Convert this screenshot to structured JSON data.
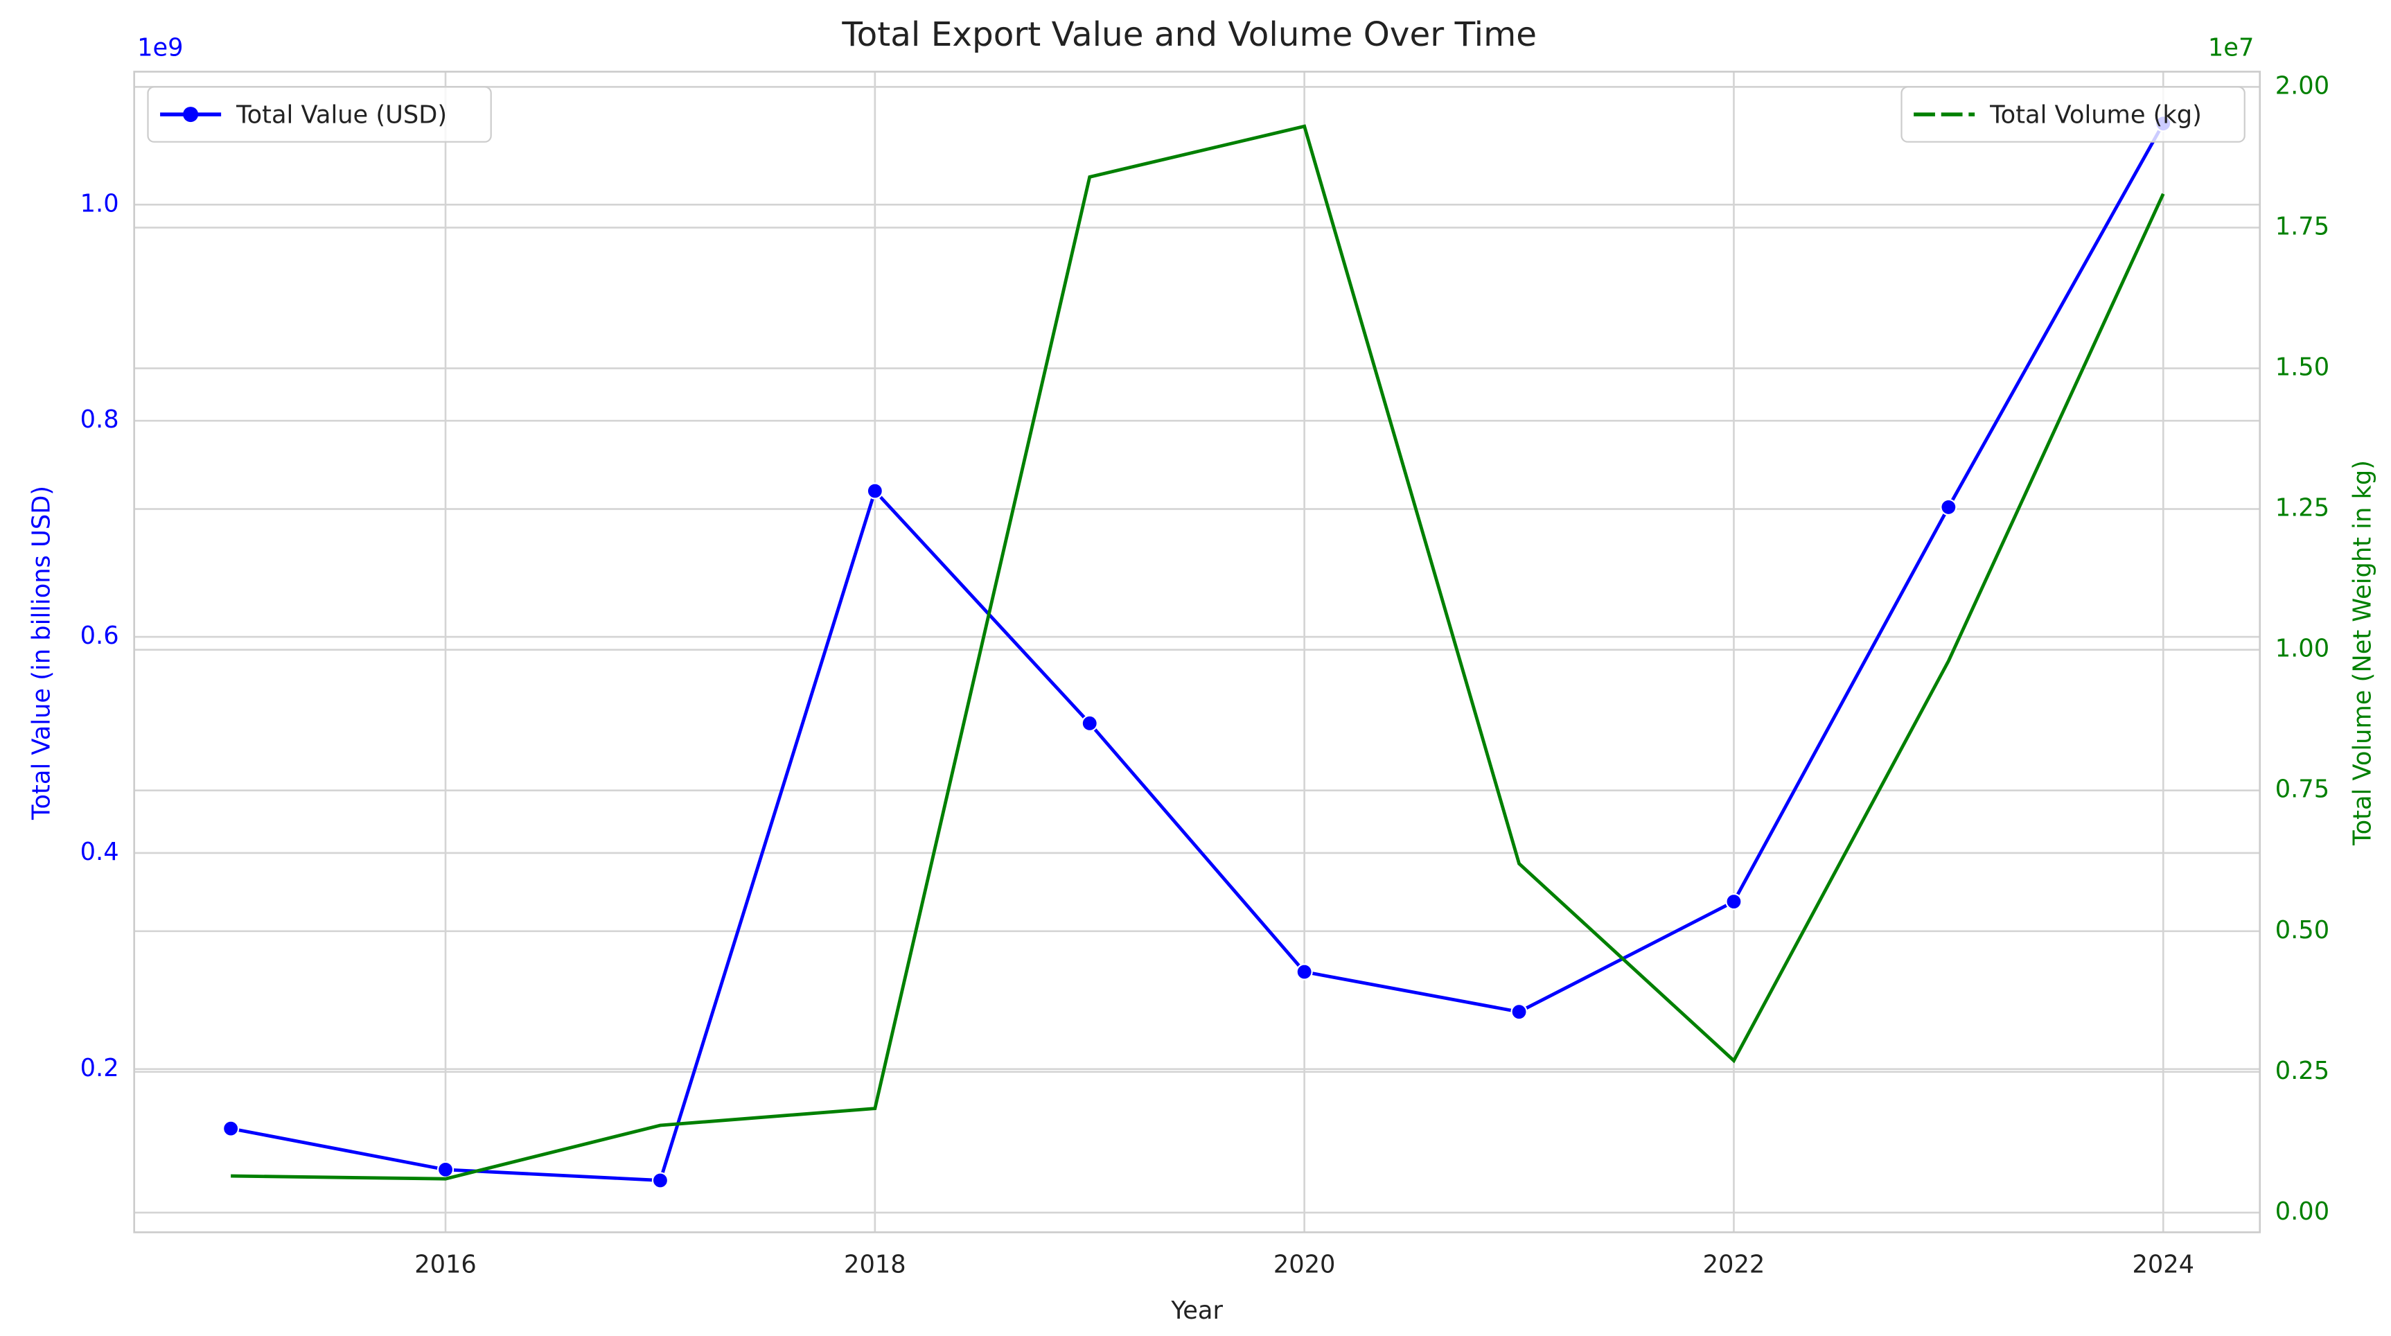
{
  "chart_data": {
    "type": "line",
    "title": "Total Export Value and Volume Over Time",
    "x_label": "Year",
    "y_label": "Total Value (in billions USD)",
    "y2_label": "Total Volume (Net Weight in kg)",
    "y_offset_label": "1e9",
    "y2_offset_label": "1e7",
    "x": [
      2015,
      2016,
      2017,
      2018,
      2019,
      2020,
      2021,
      2022,
      2023,
      2024
    ],
    "xlim": [
      2014.55,
      2024.45
    ],
    "xticks": [
      2016,
      2018,
      2020,
      2022,
      2024
    ],
    "ylim": [
      0.049,
      1.123
    ],
    "yticks": [
      0.2,
      0.4,
      0.6,
      0.8,
      {
        "value": 1.0,
        "label": "1.0"
      }
    ],
    "y2lim": [
      -0.035,
      2.027
    ],
    "y2ticks": [
      {
        "value": 0,
        "label": "0.00"
      },
      {
        "value": 0.25,
        "label": "0.25"
      },
      {
        "value": 0.5,
        "label": "0.50"
      },
      {
        "value": 0.75,
        "label": "0.75"
      },
      {
        "value": 1.0,
        "label": "1.00"
      },
      {
        "value": 1.25,
        "label": "1.25"
      },
      {
        "value": 1.5,
        "label": "1.50"
      },
      {
        "value": 1.75,
        "label": "1.75"
      },
      {
        "value": 2.0,
        "label": "2.00"
      }
    ],
    "grid": true,
    "series": [
      {
        "name": "Total Value (USD)",
        "color": "#0000ff",
        "marker": true,
        "legend": "upper left",
        "values": [
          0.145,
          0.107,
          0.097,
          0.735,
          0.52,
          0.29,
          0.253,
          0.355,
          0.72,
          1.075
        ]
      },
      {
        "name": "Total Volume (kg)",
        "color": "#008000",
        "marker": false,
        "legend": "upper right",
        "axis": "y2",
        "values": [
          0.065,
          0.06,
          0.155,
          0.185,
          1.84,
          1.93,
          0.62,
          0.27,
          0.98,
          1.81
        ]
      }
    ]
  }
}
